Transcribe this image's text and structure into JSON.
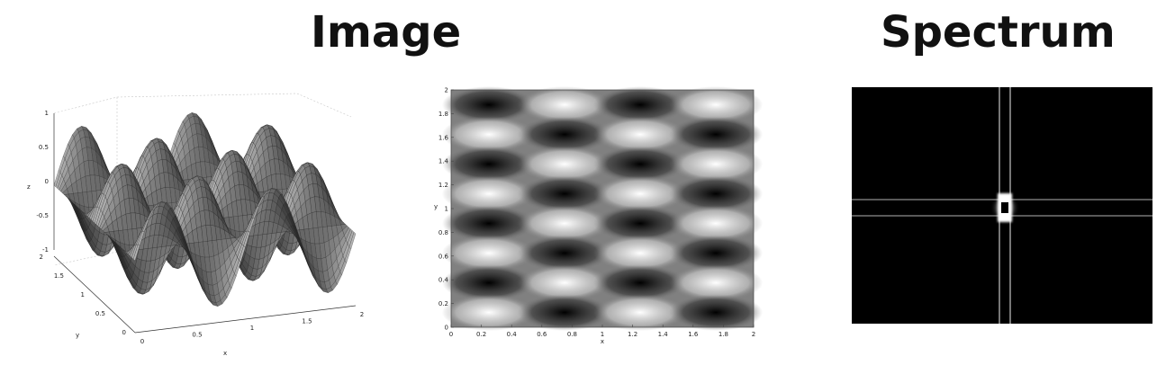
{
  "titles": {
    "image": "Image",
    "spectrum": "Spectrum"
  },
  "surface_plot": {
    "z_ticks": [
      "1",
      "0.5",
      "0",
      "-0.5",
      "-1"
    ],
    "y_ticks": [
      "2",
      "1.5",
      "1",
      "0.5",
      "0"
    ],
    "x_ticks": [
      "0",
      "0.5",
      "1",
      "1.5",
      "2"
    ],
    "xlabel": "x",
    "ylabel": "y",
    "zlabel": "z"
  },
  "image_plot": {
    "x_ticks": [
      "0",
      "0.2",
      "0.4",
      "0.6",
      "0.8",
      "1",
      "1.2",
      "1.4",
      "1.6",
      "1.8",
      "2"
    ],
    "y_ticks": [
      "0",
      "0.2",
      "0.4",
      "0.6",
      "0.8",
      "1",
      "1.2",
      "1.4",
      "1.6",
      "1.8",
      "2"
    ],
    "xlabel": "x",
    "ylabel": "y"
  },
  "spectrum_plot": {
    "background": "#000000",
    "line_color": "#ffffff"
  }
}
